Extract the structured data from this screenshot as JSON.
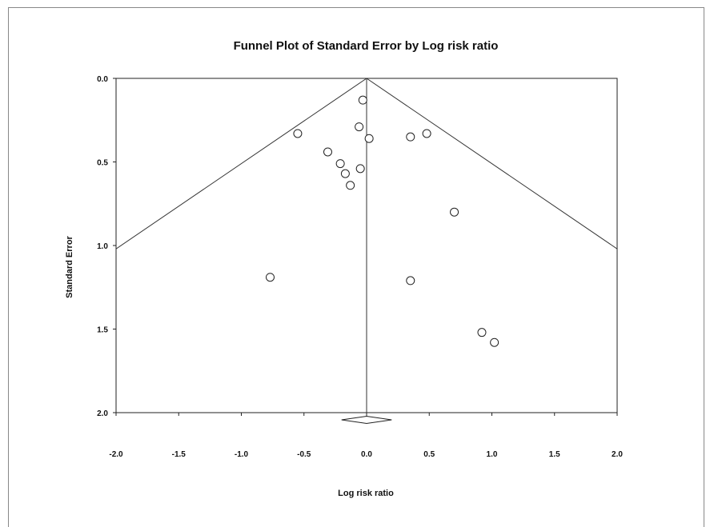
{
  "chart_data": {
    "type": "scatter",
    "title": "Funnel Plot of Standard Error by Log risk ratio",
    "xlabel": "Log risk ratio",
    "ylabel": "Standard Error",
    "xlim": [
      -2.0,
      2.0
    ],
    "ylim": [
      0.0,
      2.0
    ],
    "y_reversed": true,
    "x_ticks": [
      "-2.0",
      "-1.5",
      "-1.0",
      "-0.5",
      "0.0",
      "0.5",
      "1.0",
      "1.5",
      "2.0"
    ],
    "y_ticks": [
      "0.0",
      "0.5",
      "1.0",
      "1.5",
      "2.0"
    ],
    "pooled_estimate": 0.0,
    "funnel_slope_se_per_unit": 0.51,
    "summary_diamond": {
      "center": 0.0,
      "lower": -0.2,
      "upper": 0.2
    },
    "points": [
      {
        "x": -0.03,
        "y": 0.13
      },
      {
        "x": -0.55,
        "y": 0.33
      },
      {
        "x": -0.06,
        "y": 0.29
      },
      {
        "x": 0.02,
        "y": 0.36
      },
      {
        "x": 0.35,
        "y": 0.35
      },
      {
        "x": 0.48,
        "y": 0.33
      },
      {
        "x": -0.31,
        "y": 0.44
      },
      {
        "x": -0.21,
        "y": 0.51
      },
      {
        "x": -0.05,
        "y": 0.54
      },
      {
        "x": -0.17,
        "y": 0.57
      },
      {
        "x": -0.13,
        "y": 0.64
      },
      {
        "x": 0.7,
        "y": 0.8
      },
      {
        "x": -0.77,
        "y": 1.19
      },
      {
        "x": 0.35,
        "y": 1.21
      },
      {
        "x": 0.92,
        "y": 1.52
      },
      {
        "x": 1.02,
        "y": 1.58
      }
    ],
    "grid": false,
    "legend": "none"
  }
}
